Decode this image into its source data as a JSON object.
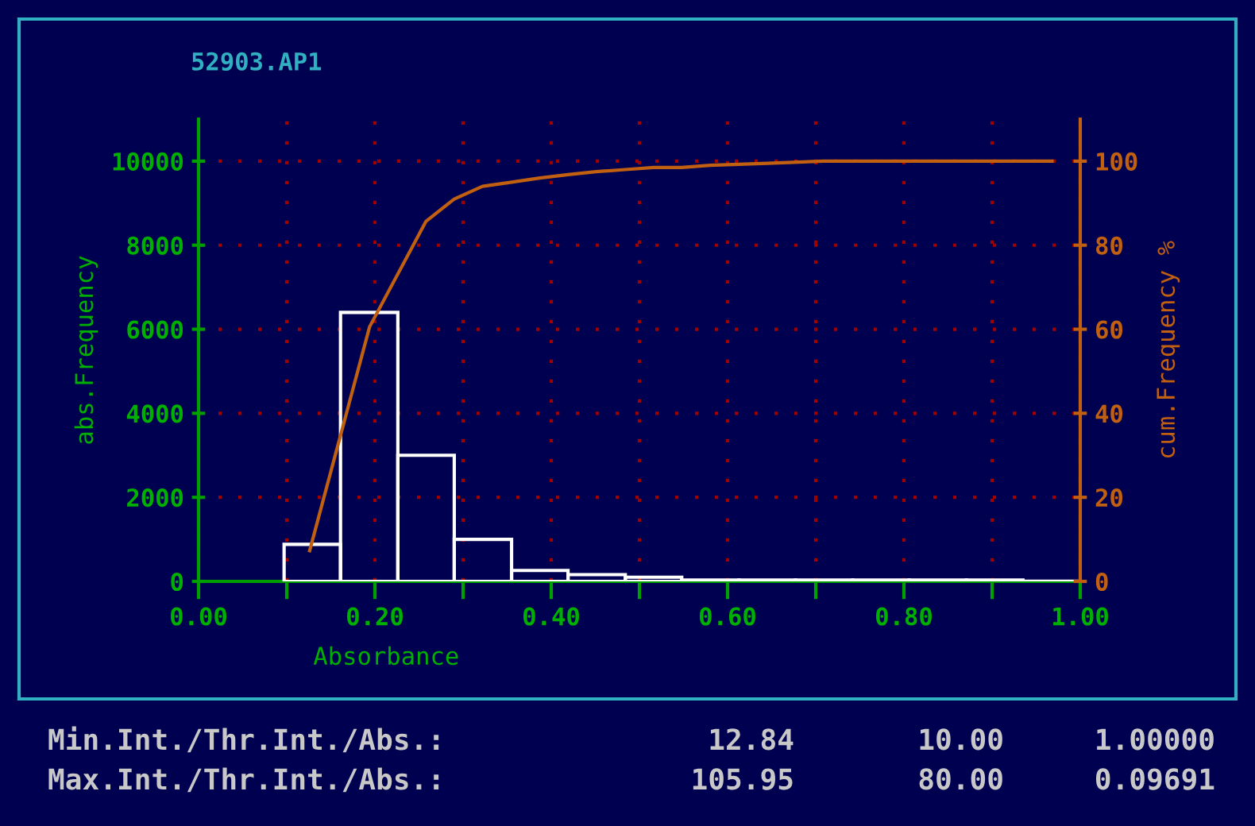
{
  "chart_data": {
    "type": "histogram",
    "title": "52903.AP1",
    "xlabel": "Absorbance",
    "ylabel": "abs.Frequency",
    "y2label": "cum.Frequency %",
    "bins": [
      0.097,
      0.161,
      0.226,
      0.29,
      0.355,
      0.419,
      0.484,
      0.548,
      0.613,
      0.677,
      0.742,
      0.806,
      0.871,
      0.935,
      1.0
    ],
    "values": [
      880,
      6400,
      3000,
      1000,
      260,
      160,
      100,
      30,
      30,
      30,
      30,
      30,
      30,
      5
    ],
    "color": "#ffffff",
    "series": [
      {
        "type": "line",
        "axis": "y2",
        "color": "#c06010",
        "x": [
          0.126,
          0.194,
          0.258,
          0.29,
          0.322,
          0.355,
          0.387,
          0.419,
          0.451,
          0.484,
          0.516,
          0.548,
          0.58,
          0.645,
          0.709,
          0.968
        ],
        "values": [
          7.3,
          60.6,
          85.7,
          91,
          94,
          95,
          96,
          96.8,
          97.5,
          98,
          98.5,
          98.5,
          99,
          99.5,
          100,
          100
        ]
      }
    ],
    "xlim": [
      0,
      1
    ],
    "ylim": [
      0,
      11000
    ],
    "y2lim": [
      0,
      110
    ],
    "xticks": [
      {
        "value": 0,
        "label": "0.00"
      },
      {
        "value": 0.1,
        "label": null
      },
      {
        "value": 0.2,
        "label": "0.20"
      },
      {
        "value": 0.3,
        "label": null
      },
      {
        "value": 0.4,
        "label": "0.40"
      },
      {
        "value": 0.5,
        "label": null
      },
      {
        "value": 0.6,
        "label": "0.60"
      },
      {
        "value": 0.7,
        "label": null
      },
      {
        "value": 0.8,
        "label": "0.80"
      },
      {
        "value": 0.9,
        "label": null
      },
      {
        "value": 1.0,
        "label": "1.00"
      }
    ],
    "yticks": [
      0,
      2000,
      4000,
      6000,
      8000,
      10000
    ],
    "y2ticks": [
      0,
      20,
      40,
      60,
      80,
      100
    ],
    "grid": true,
    "annotations": [
      "Min.Int./Thr.Int./Abs.:",
      "12.84",
      "10.00",
      "1.00000",
      "Max.Int./Thr.Int./Abs.:",
      "105.95",
      "80.00",
      "0.09691"
    ]
  }
}
